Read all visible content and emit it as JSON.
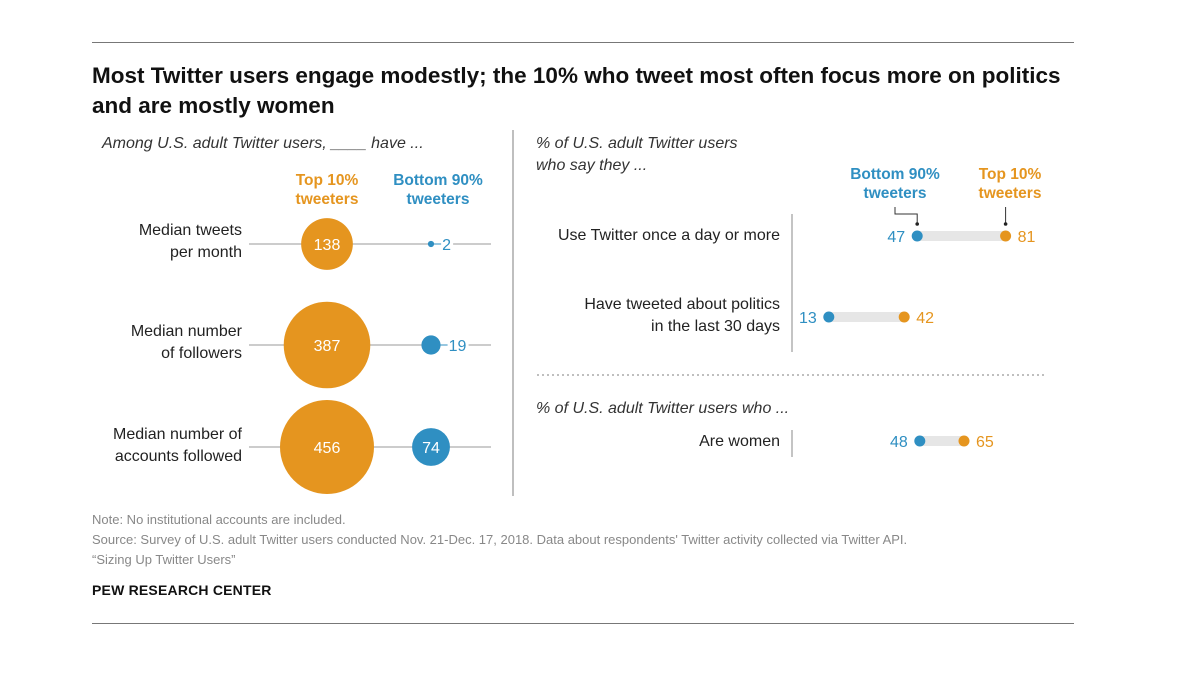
{
  "title": "Most Twitter users engage modestly; the 10% who tweet most often focus more on politics and are mostly women",
  "colors": {
    "top": "#e5951f",
    "bottom": "#2f8fc2",
    "line": "#999999",
    "track": "#e6e6e6"
  },
  "left_panel": {
    "subtitle": "Among U.S. adult Twitter users, ____ have ...",
    "legend_top": [
      "Top 10%",
      "tweeters"
    ],
    "legend_bottom": [
      "Bottom 90%",
      "tweeters"
    ],
    "row_labels": [
      [
        "Median tweets",
        "per month"
      ],
      [
        "Median number",
        "of followers"
      ],
      [
        "Median number of",
        "accounts followed"
      ]
    ]
  },
  "right_panel": {
    "subtitle_lines": [
      "% of U.S. adult Twitter users",
      "who say they ..."
    ],
    "legend_bottom": [
      "Bottom 90%",
      "tweeters"
    ],
    "legend_top": [
      "Top 10%",
      "tweeters"
    ],
    "row_labels": [
      [
        "Use Twitter once a day or more"
      ],
      [
        "Have tweeted about politics",
        "in the last 30 days"
      ]
    ],
    "subtitle2": "% of U.S. adult Twitter users who ...",
    "row_label3": "Are women"
  },
  "chart_data": [
    {
      "type": "bubble",
      "categories": [
        "Median tweets per month",
        "Median number of followers",
        "Median number of accounts followed"
      ],
      "series": [
        {
          "name": "Top 10% tweeters",
          "values": [
            138,
            387,
            456
          ]
        },
        {
          "name": "Bottom 90% tweeters",
          "values": [
            2,
            19,
            74
          ]
        }
      ]
    },
    {
      "type": "dot",
      "categories": [
        "Use Twitter once a day or more",
        "Have tweeted about politics in the last 30 days",
        "Are women"
      ],
      "series": [
        {
          "name": "Bottom 90% tweeters",
          "values": [
            47,
            13,
            48
          ]
        },
        {
          "name": "Top 10% tweeters",
          "values": [
            81,
            42,
            65
          ]
        }
      ]
    }
  ],
  "footer": {
    "note": "Note: No institutional accounts are included.",
    "source1": "Source: Survey of U.S. adult Twitter users conducted Nov. 21-Dec. 17, 2018. Data about respondents' Twitter activity collected via Twitter API.",
    "source2": "“Sizing Up Twitter Users”",
    "org": "PEW RESEARCH CENTER"
  }
}
